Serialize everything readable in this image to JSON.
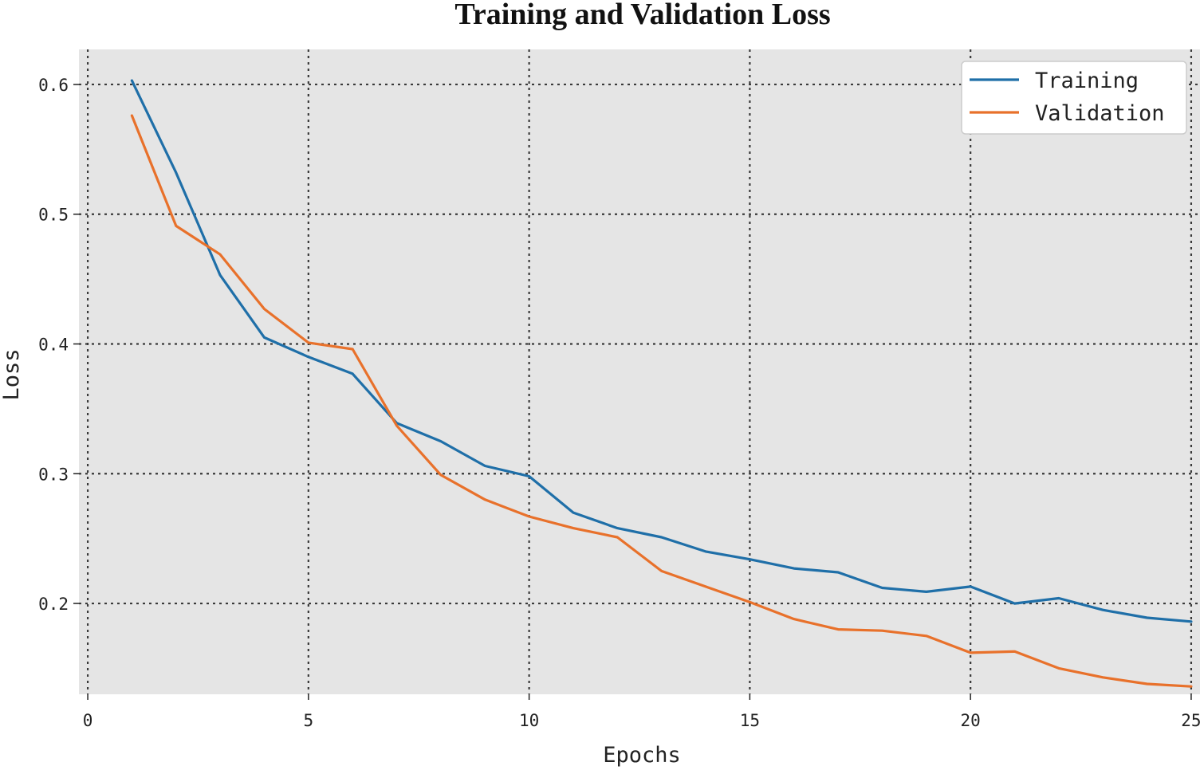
{
  "chart_data": {
    "type": "line",
    "title": "Training and Validation Loss",
    "xlabel": "Epochs",
    "ylabel": "Loss",
    "xlim": [
      -0.2,
      25.2
    ],
    "ylim": [
      0.13,
      0.627
    ],
    "xticks": [
      0,
      5,
      10,
      15,
      20,
      25
    ],
    "xtick_labels": [
      "0",
      "5",
      "10",
      "15",
      "20",
      "25"
    ],
    "yticks": [
      0.2,
      0.3,
      0.4,
      0.5,
      0.6
    ],
    "ytick_labels": [
      "0.2",
      "0.3",
      "0.4",
      "0.5",
      "0.6"
    ],
    "grid": true,
    "legend_position": "top-right",
    "x": [
      1,
      2,
      3,
      4,
      5,
      6,
      7,
      8,
      9,
      10,
      11,
      12,
      13,
      14,
      15,
      16,
      17,
      18,
      19,
      20,
      21,
      22,
      23,
      24,
      25
    ],
    "series": [
      {
        "name": "Training",
        "color": "#1f6fa8",
        "values": [
          0.603,
          0.532,
          0.453,
          0.405,
          0.39,
          0.377,
          0.339,
          0.325,
          0.306,
          0.298,
          0.27,
          0.258,
          0.251,
          0.24,
          0.234,
          0.227,
          0.224,
          0.212,
          0.209,
          0.213,
          0.2,
          0.204,
          0.195,
          0.189,
          0.186
        ]
      },
      {
        "name": "Validation",
        "color": "#e8712b",
        "values": [
          0.576,
          0.491,
          0.469,
          0.427,
          0.401,
          0.396,
          0.337,
          0.299,
          0.28,
          0.267,
          0.258,
          0.251,
          0.225,
          0.213,
          0.201,
          0.188,
          0.18,
          0.179,
          0.175,
          0.162,
          0.163,
          0.15,
          0.143,
          0.138,
          0.136
        ]
      }
    ]
  }
}
